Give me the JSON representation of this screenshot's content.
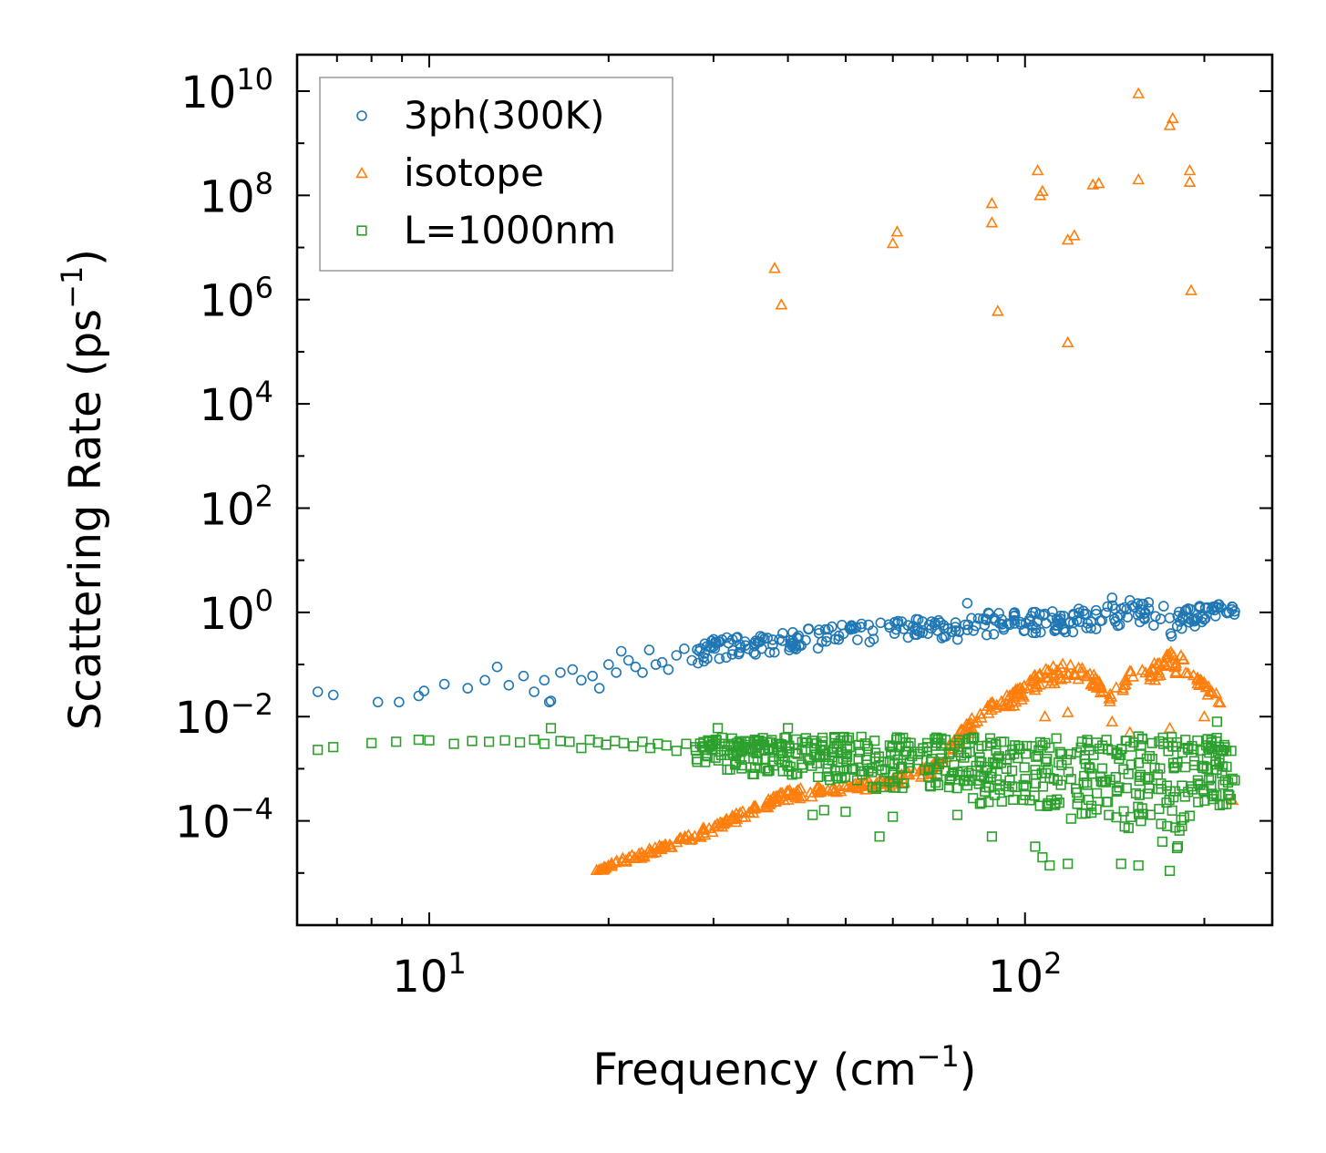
{
  "chart_data": {
    "type": "scatter",
    "xscale": "log",
    "yscale": "log",
    "xlim": [
      6.0,
      260.0
    ],
    "ylim": [
      1e-06,
      50000000000.0
    ],
    "xlabel": "Frequency (cm",
    "xlabel_sup": "−1",
    "xlabel_tail": ")",
    "ylabel": "Scattering Rate (ps",
    "ylabel_sup": "−1",
    "ylabel_tail": ")",
    "x_ticks": [
      {
        "value": 10,
        "base": "10",
        "exp": "1"
      },
      {
        "value": 100,
        "base": "10",
        "exp": "2"
      }
    ],
    "y_ticks": [
      {
        "value": 0.0001,
        "base": "10",
        "exp": "−4"
      },
      {
        "value": 0.01,
        "base": "10",
        "exp": "−2"
      },
      {
        "value": 1,
        "base": "10",
        "exp": "0"
      },
      {
        "value": 100.0,
        "base": "10",
        "exp": "2"
      },
      {
        "value": 10000.0,
        "base": "10",
        "exp": "4"
      },
      {
        "value": 1000000.0,
        "base": "10",
        "exp": "6"
      },
      {
        "value": 100000000.0,
        "base": "10",
        "exp": "8"
      },
      {
        "value": 10000000000.0,
        "base": "10",
        "exp": "10"
      }
    ],
    "legend_position": "top-left",
    "series": [
      {
        "name": "3ph(300K)",
        "marker": "circle",
        "color": "#1f77b4",
        "points": [
          [
            6.5,
            0.03
          ],
          [
            6.9,
            0.026
          ],
          [
            8.2,
            0.019
          ],
          [
            8.9,
            0.019
          ],
          [
            9.6,
            0.025
          ],
          [
            9.8,
            0.031
          ],
          [
            10.6,
            0.042
          ],
          [
            11.6,
            0.035
          ],
          [
            12.4,
            0.05
          ],
          [
            13.0,
            0.09
          ],
          [
            13.6,
            0.04
          ],
          [
            14.4,
            0.06
          ],
          [
            15.0,
            0.03
          ],
          [
            15.6,
            0.05
          ],
          [
            15.9,
            0.019
          ],
          [
            16.0,
            0.02
          ],
          [
            16.6,
            0.07
          ],
          [
            17.4,
            0.08
          ],
          [
            18.0,
            0.05
          ],
          [
            18.8,
            0.06
          ],
          [
            19.3,
            0.035
          ],
          [
            20.0,
            0.1
          ],
          [
            20.6,
            0.07
          ],
          [
            21.0,
            0.18
          ],
          [
            21.6,
            0.12
          ],
          [
            22.2,
            0.09
          ],
          [
            22.8,
            0.07
          ],
          [
            23.4,
            0.19
          ],
          [
            24.0,
            0.1
          ],
          [
            24.6,
            0.11
          ],
          [
            25.2,
            0.08
          ],
          [
            26.0,
            0.15
          ],
          [
            26.8,
            0.2
          ],
          [
            27.6,
            0.12
          ],
          [
            28.4,
            0.18
          ],
          [
            29.0,
            0.25
          ],
          [
            30.0,
            0.22
          ],
          [
            31.0,
            0.3
          ]
        ],
        "band": [
          [
            28,
            0.1,
            0.3
          ],
          [
            40,
            0.18,
            0.45
          ],
          [
            55,
            0.25,
            0.65
          ],
          [
            70,
            0.3,
            0.85
          ],
          [
            85,
            0.3,
            1.1
          ],
          [
            100,
            0.4,
            1.0
          ],
          [
            120,
            0.4,
            1.2
          ],
          [
            140,
            0.5,
            1.4
          ],
          [
            160,
            0.6,
            1.6
          ],
          [
            180,
            0.3,
            1.3
          ],
          [
            200,
            0.6,
            1.5
          ],
          [
            225,
            0.8,
            1.4
          ]
        ],
        "band_count": 320,
        "extra_points": [
          [
            80,
            1.5
          ],
          [
            140,
            1.9
          ],
          [
            150,
            1.7
          ],
          [
            225,
            1.05
          ]
        ]
      },
      {
        "name": "isotope",
        "marker": "triangle",
        "color": "#ff7f0e",
        "points": [
          [
            38.0,
            4000000.0
          ],
          [
            39.0,
            800000.0
          ],
          [
            60.0,
            12000000.0
          ],
          [
            61.0,
            20000000.0
          ],
          [
            88.0,
            70000000.0
          ],
          [
            88.0,
            30000000.0
          ],
          [
            90.0,
            600000.0
          ],
          [
            105.0,
            300000000.0
          ],
          [
            106.0,
            100000000.0
          ],
          [
            107.0,
            120000000.0
          ],
          [
            118.0,
            14000000.0
          ],
          [
            118.0,
            150000.0
          ],
          [
            121.0,
            17000000.0
          ],
          [
            130.0,
            160000000.0
          ],
          [
            133.0,
            170000000.0
          ],
          [
            155.0,
            9000000000.0
          ],
          [
            155.0,
            200000000.0
          ],
          [
            175.0,
            2200000000.0
          ],
          [
            177.0,
            3000000000.0
          ],
          [
            189.0,
            300000000.0
          ],
          [
            189.0,
            180000000.0
          ],
          [
            190.0,
            1500000.0
          ],
          [
            223.0,
            0.00025
          ],
          [
            108.0,
            0.01
          ],
          [
            118.0,
            0.012
          ],
          [
            140.0,
            0.008
          ],
          [
            200.0,
            0.01
          ],
          [
            175.0,
            0.006
          ],
          [
            150.0,
            0.005
          ]
        ],
        "band": [
          [
            19,
            1e-05,
            1.2e-05
          ],
          [
            22,
            1.7e-05,
            2.3e-05
          ],
          [
            25,
            2.7e-05,
            3.7e-05
          ],
          [
            30,
            6e-05,
            9e-05
          ],
          [
            35,
            0.00013,
            0.0002
          ],
          [
            40,
            0.00025,
            0.0004
          ],
          [
            50,
            0.00035,
            0.0005
          ],
          [
            60,
            0.00045,
            0.0007
          ],
          [
            70,
            0.0008,
            0.0012
          ],
          [
            80,
            0.004,
            0.008
          ],
          [
            85,
            0.007,
            0.015
          ],
          [
            95,
            0.015,
            0.03
          ],
          [
            105,
            0.03,
            0.07
          ],
          [
            115,
            0.05,
            0.11
          ],
          [
            125,
            0.05,
            0.1
          ],
          [
            140,
            0.015,
            0.03
          ],
          [
            150,
            0.05,
            0.1
          ],
          [
            160,
            0.04,
            0.08
          ],
          [
            175,
            0.07,
            0.18
          ],
          [
            185,
            0.06,
            0.15
          ],
          [
            200,
            0.03,
            0.05
          ],
          [
            215,
            0.012,
            0.02
          ]
        ],
        "band_count": 420,
        "extra_points": []
      },
      {
        "name": "L=1000nm",
        "marker": "square",
        "color": "#2ca02c",
        "points": [
          [
            6.5,
            0.0023
          ],
          [
            6.9,
            0.0026
          ],
          [
            8.0,
            0.0031
          ],
          [
            8.8,
            0.0033
          ],
          [
            9.6,
            0.0036
          ],
          [
            10.0,
            0.0035
          ],
          [
            11.0,
            0.003
          ],
          [
            11.8,
            0.0034
          ],
          [
            12.6,
            0.0033
          ],
          [
            13.4,
            0.0035
          ],
          [
            14.2,
            0.0032
          ],
          [
            15.0,
            0.0036
          ],
          [
            15.6,
            0.003
          ],
          [
            16.0,
            0.006
          ],
          [
            16.6,
            0.0034
          ],
          [
            17.2,
            0.0033
          ],
          [
            18.0,
            0.0025
          ],
          [
            18.6,
            0.0036
          ],
          [
            19.2,
            0.0032
          ],
          [
            19.8,
            0.0029
          ],
          [
            20.5,
            0.0034
          ],
          [
            21.2,
            0.0031
          ],
          [
            22.0,
            0.0027
          ],
          [
            22.8,
            0.0033
          ],
          [
            23.5,
            0.0025
          ],
          [
            24.2,
            0.003
          ],
          [
            25.0,
            0.0028
          ],
          [
            26.0,
            0.0022
          ],
          [
            27.0,
            0.003
          ],
          [
            28.0,
            0.0026
          ],
          [
            30.5,
            0.006
          ],
          [
            40.0,
            0.006
          ],
          [
            44.0,
            0.00013
          ],
          [
            46.0,
            0.00016
          ],
          [
            50.0,
            0.00015
          ],
          [
            57.0,
            5e-05
          ],
          [
            60.0,
            0.00012
          ],
          [
            77.0,
            0.00013
          ],
          [
            80.0,
            0.00048
          ],
          [
            88.0,
            5e-05
          ],
          [
            104.0,
            3.2e-05
          ],
          [
            107.0,
            2e-05
          ],
          [
            110.0,
            1.4e-05
          ],
          [
            118.0,
            1.5e-05
          ],
          [
            145.0,
            1.5e-05
          ],
          [
            155.0,
            1.4e-05
          ],
          [
            170.0,
            4e-05
          ],
          [
            175.0,
            1.1e-05
          ],
          [
            180.0,
            3e-05
          ],
          [
            195.0,
            0.0006
          ],
          [
            210.0,
            0.008
          ],
          [
            225.0,
            0.0006
          ],
          [
            222.0,
            0.0022
          ]
        ],
        "band": [
          [
            28,
            0.0012,
            0.004
          ],
          [
            40,
            0.0006,
            0.004
          ],
          [
            55,
            0.0004,
            0.0045
          ],
          [
            70,
            0.0003,
            0.004
          ],
          [
            85,
            0.0002,
            0.004
          ],
          [
            100,
            0.00025,
            0.0035
          ],
          [
            120,
            8e-05,
            0.004
          ],
          [
            135,
            0.00015,
            0.0035
          ],
          [
            150,
            5e-05,
            0.0045
          ],
          [
            165,
            0.0001,
            0.004
          ],
          [
            180,
            2e-05,
            0.005
          ],
          [
            195,
            0.00015,
            0.004
          ],
          [
            215,
            0.0002,
            0.004
          ],
          [
            225,
            0.0002,
            0.003
          ]
        ],
        "band_count": 620,
        "extra_points": []
      }
    ]
  }
}
